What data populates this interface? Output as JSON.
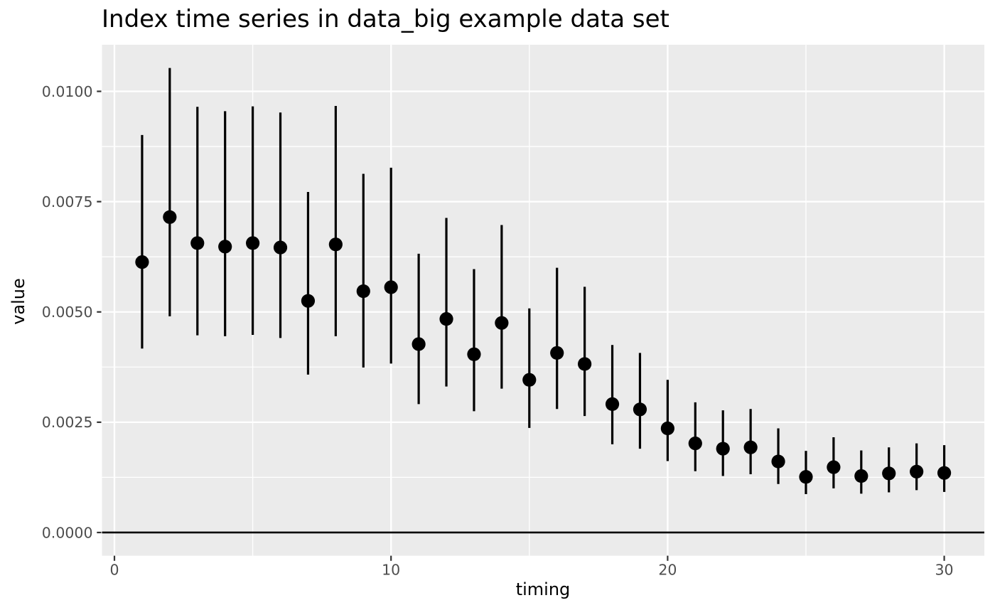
{
  "style": {
    "background": "#FFFFFF",
    "panel_bg": "#EBEBEB",
    "grid_color": "#FFFFFF",
    "geom_color": "#000000",
    "tick_mark_color": "#333333",
    "tick_label_color": "#4D4D4D",
    "title_color": "#000000"
  },
  "chart_data": {
    "type": "scatter",
    "subtype": "pointrange",
    "title": "Index time series in data_big example data set",
    "xlabel": "timing",
    "ylabel": "value",
    "x": [
      1,
      2,
      3,
      4,
      5,
      6,
      7,
      8,
      9,
      10,
      11,
      12,
      13,
      14,
      15,
      16,
      17,
      18,
      19,
      20,
      21,
      22,
      23,
      24,
      25,
      26,
      27,
      28,
      29,
      30
    ],
    "series": [
      {
        "name": "value",
        "values": [
          0.00613,
          0.00715,
          0.00656,
          0.00648,
          0.00656,
          0.00646,
          0.00525,
          0.00653,
          0.00547,
          0.00556,
          0.00427,
          0.00484,
          0.00404,
          0.00475,
          0.00346,
          0.00407,
          0.00382,
          0.00291,
          0.00279,
          0.00236,
          0.00202,
          0.0019,
          0.00193,
          0.00161,
          0.00126,
          0.00148,
          0.00128,
          0.00134,
          0.00138,
          0.00135
        ]
      },
      {
        "name": "ymin",
        "values": [
          0.00417,
          0.0049,
          0.00447,
          0.00445,
          0.00448,
          0.00441,
          0.00358,
          0.00445,
          0.00374,
          0.00383,
          0.00291,
          0.00331,
          0.00275,
          0.00326,
          0.00237,
          0.0028,
          0.00264,
          0.002,
          0.0019,
          0.00162,
          0.00139,
          0.00128,
          0.00132,
          0.0011,
          0.00087,
          0.001,
          0.00088,
          0.00091,
          0.00096,
          0.00092
        ]
      },
      {
        "name": "ymax",
        "values": [
          0.00901,
          0.01053,
          0.00965,
          0.00955,
          0.00966,
          0.00952,
          0.00772,
          0.00967,
          0.00813,
          0.00827,
          0.00632,
          0.00713,
          0.00597,
          0.00697,
          0.00508,
          0.006,
          0.00557,
          0.00425,
          0.00407,
          0.00346,
          0.00295,
          0.00277,
          0.0028,
          0.00236,
          0.00185,
          0.00216,
          0.00186,
          0.00193,
          0.00202,
          0.00198
        ]
      }
    ],
    "hline_y": 0,
    "x_ticks": [
      0,
      10,
      20,
      30
    ],
    "x_tick_labels": [
      "0",
      "10",
      "20",
      "30"
    ],
    "x_minor_ticks": [
      5,
      15,
      25
    ],
    "y_ticks": [
      0,
      0.0025,
      0.005,
      0.0075,
      0.01
    ],
    "y_tick_labels": [
      "0.0000",
      "0.0025",
      "0.0050",
      "0.0075",
      "0.0100"
    ],
    "y_minor_ticks": [
      0.00125,
      0.00375,
      0.00625,
      0.00875
    ],
    "xlim": [
      -0.45,
      31.45
    ],
    "ylim": [
      -0.000526,
      0.011057
    ],
    "grid": "major+minor",
    "legend": "none"
  }
}
